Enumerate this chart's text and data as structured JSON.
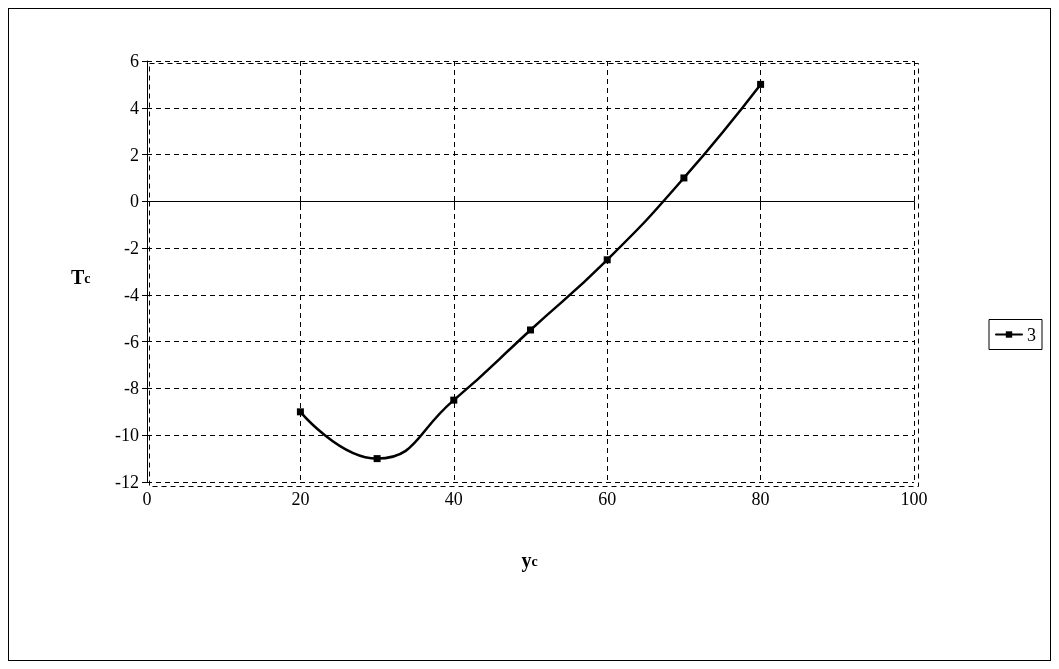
{
  "chart_data": {
    "type": "line",
    "xlabel": "y$_{c}$",
    "ylabel": "T$_{c}$",
    "x": [
      20,
      30,
      40,
      50,
      60,
      70,
      80
    ],
    "series": [
      {
        "name": "3",
        "color": "#000000",
        "values": [
          -9,
          -11,
          -8.5,
          -5.5,
          -2.5,
          1,
          5
        ]
      }
    ],
    "xlim": [
      0,
      100
    ],
    "xticks": [
      0,
      20,
      40,
      60,
      80,
      100
    ],
    "ylim": [
      -12,
      6
    ],
    "yticks": [
      -12,
      -10,
      -8,
      -6,
      -4,
      -2,
      0,
      2,
      4,
      6
    ],
    "grid": true,
    "legend": "right",
    "marker": "square",
    "line_style": "solid"
  }
}
